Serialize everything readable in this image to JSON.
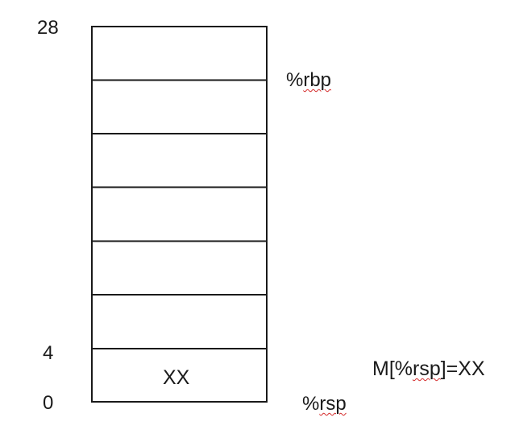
{
  "stack": {
    "address_labels": [
      "28",
      "4",
      "0"
    ],
    "slot_count": 7,
    "bottom_slot_value": "XX"
  },
  "registers": {
    "rbp_prefix": "%",
    "rbp_name": "rbp",
    "rsp_prefix": "%",
    "rsp_name": "rsp"
  },
  "equation": {
    "pre": "M[%",
    "reg": "rsp",
    "post": "]=XX"
  },
  "colors": {
    "line": "#1a1a1a",
    "spellcheck_underline": "#d42a2a"
  }
}
